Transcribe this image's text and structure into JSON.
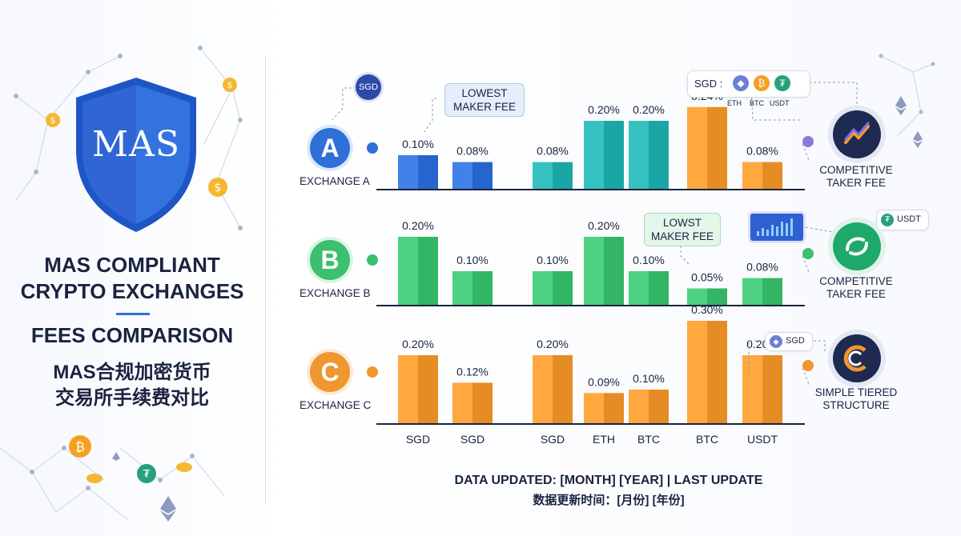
{
  "left": {
    "shield_label": "MAS",
    "title_line1": "MAS COMPLIANT",
    "title_line2": "CRYPTO EXCHANGES",
    "title_line3": "FEES COMPARISON",
    "title_cn_line1": "MAS合规加密货币",
    "title_cn_line2": "交易所手续费对比"
  },
  "colors": {
    "exchange_a": "#2f6fd8",
    "exchange_a_teal": "#25b0b0",
    "exchange_b": "#3cbf6e",
    "exchange_c": "#f0962e",
    "shield": "#2f6fd8",
    "text": "#1a2340"
  },
  "callouts": {
    "a_sgd_badge": "SGD",
    "a_lowest_maker": "LOWEST\nMAKER FEE",
    "a_top_pill_label": "SGD :",
    "a_top_pill_coins": [
      "ETH",
      "BTC",
      "USDT"
    ],
    "a_feature": "COMPETITIVE\nTAKER FEE",
    "b_lowest_maker": "LOWST\nMAKER FEE",
    "b_usdt_pill": "USDT",
    "b_feature": "COMPETITIVE\nTAKER FEE",
    "c_sgd_pill": "SGD",
    "c_feature": "SIMPLE TIERED\nSTRUCTURE"
  },
  "footer": {
    "line1": "DATA UPDATED: [MONTH] [YEAR] | LAST UPDATE",
    "line2": "数据更新时间：[月份] [年份]"
  },
  "chart_data": {
    "type": "bar",
    "categories": [
      "SGD",
      "SGD",
      "SGD",
      "ETH",
      "BTC",
      "BTC",
      "USDT"
    ],
    "series": [
      {
        "name": "EXCHANGE A",
        "badge": "A",
        "values": [
          0.1,
          0.08,
          0.08,
          0.2,
          0.2,
          0.24,
          0.08
        ],
        "labels": [
          "0.10%",
          "0.08%",
          "0.08%",
          "0.20%",
          "0.20%",
          "0.24%",
          "0.08%"
        ]
      },
      {
        "name": "EXCHANGE B",
        "badge": "B",
        "values": [
          0.2,
          0.1,
          0.1,
          0.2,
          0.1,
          0.05,
          0.08
        ],
        "labels": [
          "0.20%",
          "0.10%",
          "0.10%",
          "0.20%",
          "0.10%",
          "0.05%",
          "0.08%"
        ]
      },
      {
        "name": "EXCHANGE C",
        "badge": "C",
        "values": [
          0.2,
          0.12,
          0.2,
          0.09,
          0.1,
          0.3,
          0.2
        ],
        "labels": [
          "0.20%",
          "0.12%",
          "0.20%",
          "0.09%",
          "0.10%",
          "0.30%",
          "0.20%"
        ]
      }
    ],
    "bar_colors_a": [
      "#2f6fd8",
      "#2f6fd8",
      "#25b0b0",
      "#25b0b0",
      "#25b0b0",
      "#f0962e",
      "#f0962e"
    ],
    "bar_colors_b": [
      "#3cbf6e",
      "#3cbf6e",
      "#3cbf6e",
      "#3cbf6e",
      "#3cbf6e",
      "#3cbf6e",
      "#3cbf6e"
    ],
    "bar_colors_c": [
      "#f0962e",
      "#f0962e",
      "#f0962e",
      "#f0962e",
      "#f0962e",
      "#f0962e",
      "#f0962e"
    ]
  }
}
